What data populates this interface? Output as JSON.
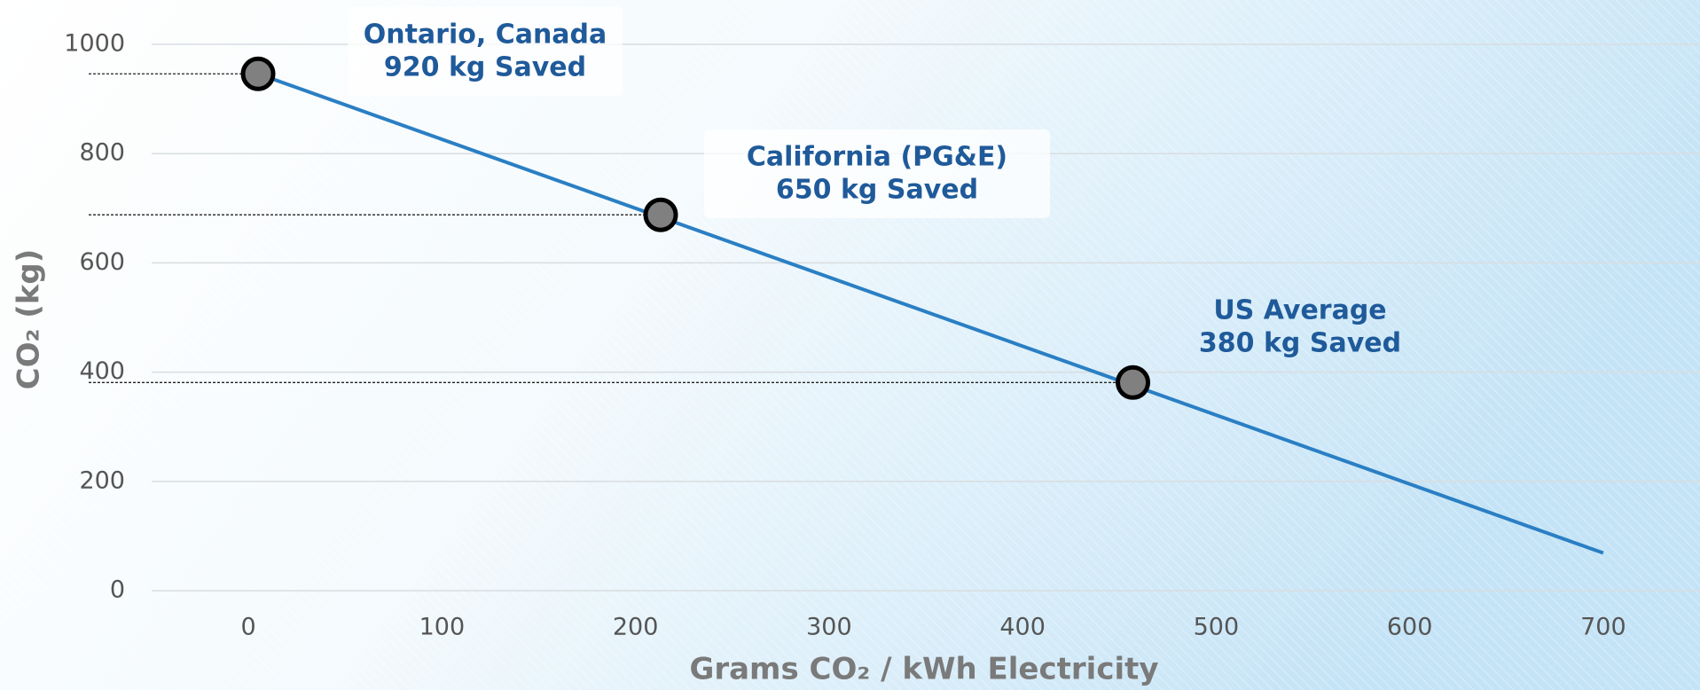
{
  "chart_data": {
    "type": "line",
    "xlabel": "Grams CO₂ / kWh Electricity",
    "ylabel": "CO₂ (kg)",
    "xlim": [
      -50,
      750
    ],
    "ylim": [
      0,
      1000
    ],
    "xticks": [
      0,
      100,
      200,
      300,
      400,
      500,
      600,
      700
    ],
    "yticks": [
      0,
      200,
      400,
      600,
      800,
      1000
    ],
    "grid": true,
    "series": [
      {
        "color": "#2a7fc4",
        "x": [
          5,
          700
        ],
        "values": [
          946,
          69
        ]
      },
      {
        "color": "#808080",
        "x": [
          5,
          213,
          457
        ],
        "values": [
          946,
          688,
          381
        ],
        "markers": true
      }
    ],
    "annotations": [
      {
        "lines": [
          "Ontario, Canada",
          "920 kg Saved"
        ]
      },
      {
        "lines": [
          "California (PG&E)",
          "650 kg Saved"
        ]
      },
      {
        "lines": [
          "US Average",
          "380 kg Saved"
        ]
      }
    ]
  }
}
